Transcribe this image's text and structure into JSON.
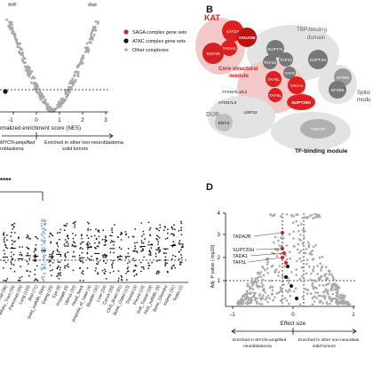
{
  "panel_a": {
    "legend": [
      {
        "label": "SAGA complex gene sets",
        "color": "#e02020"
      },
      {
        "label": "ATAC complex gene sets",
        "color": "#111111"
      },
      {
        "label": "Other complexes",
        "color": "#a9a9a9"
      }
    ],
    "xlabel": "rmalized enrichment score (NES)",
    "ticks": [
      "-1",
      "0",
      "1",
      "2",
      "3"
    ],
    "arrow_left_text": "MYCN-amplified",
    "arrow_left_text2": "roblastoma",
    "arrow_right_text": "Enriched in other non-neuroblastoma",
    "arrow_right_text2": "solid tumors"
  },
  "panel_b": {
    "label": "B",
    "kat_label": "KAT",
    "tbp_label": "TBP-binding",
    "tbp_label2": "domain",
    "core_label": "Core structural",
    "core_label2": "module",
    "splicing_label": "Splici",
    "splicing_label2": "modu",
    "dub_label": "DUB",
    "tf_label": "TF-binding module",
    "nodes": {
      "kat2a": "KAT2A",
      "tada2b": "TADA2B",
      "tada3": "TADA3",
      "sgf29": "SGF29",
      "supt7l": "SUPT7L",
      "taf12": "TAF12",
      "taf10": "TAF10",
      "taf9": "TAF9",
      "supt3h": "SUPT3H",
      "taf6l": "TAF6L",
      "tada1": "TADA1",
      "sf3b3": "SF3B3",
      "sf3b5": "SF3B5",
      "taf5l": "TAF5L",
      "supt20h": "SUPT20H",
      "atxn7": "ATXN7/L1/L2",
      "atxn7l3": "ATXN7L3",
      "usp22": "USP22",
      "eny2": "ENY2",
      "trrap": "TRRAP"
    }
  },
  "panel_c": {
    "stars": "****",
    "categories": [
      "Colorectal (36)",
      "Biliary_Tract (34)",
      "Pancreas (25)",
      "Lung (120)",
      "Skin (71)",
      "Solid_notNBL (844)",
      "Ewing (25)",
      "Eye (9)",
      "Prostate (8)",
      "Uterus (33)",
      "Head_Neck",
      "Ampulla_of_Vater (4)",
      "Bladder (32)",
      "Liver (24)",
      "Cervix (20)",
      "CNS_Brain (81)",
      "Bone_Osteo (13)",
      "Thyroid (3)",
      "Pleura (19)",
      "Soft_Tissue (18)",
      "PNS_notNBL (5)",
      "Bone_Chondro",
      "Kidney (31)",
      "Testis (2)"
    ],
    "highlight_index": 5
  },
  "panel_d": {
    "label": "D",
    "ylabel": "Adj. P value (-log10)",
    "xlabel": "Effect size",
    "ticks_x": [
      "-1",
      "0",
      "1"
    ],
    "ticks_y": [
      "1",
      "2",
      "3",
      "4"
    ],
    "labels": [
      "TADA2B",
      "SUPT20H",
      "TADA1",
      "TAF5L"
    ],
    "arrow_left_text": "Enriched in MYCN-amplified",
    "arrow_left_text2": "neuroblastoma",
    "arrow_right_text": "Enriched in other non-neuroblas",
    "arrow_right_text2": "solid tumors"
  }
}
